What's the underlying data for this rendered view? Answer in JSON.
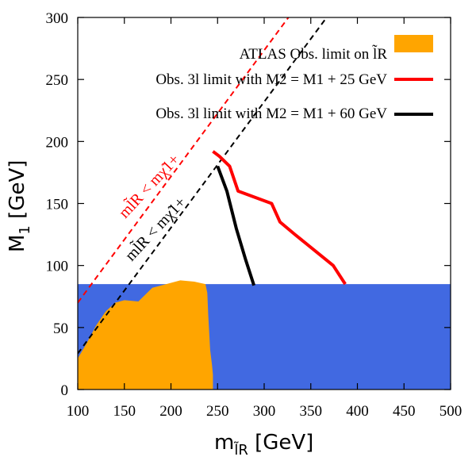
{
  "chart_data": {
    "type": "line",
    "xlabel": "m",
    "xlabel_sub": "l̃R",
    "xlabel_unit": " [GeV]",
    "ylabel": "M",
    "ylabel_sub": "1",
    "ylabel_unit": " [GeV]",
    "xlim": [
      100,
      500
    ],
    "ylim": [
      0,
      300
    ],
    "xticks": [
      100,
      150,
      200,
      250,
      300,
      350,
      400,
      450,
      500
    ],
    "yticks": [
      0,
      50,
      100,
      150,
      200,
      250,
      300
    ],
    "colors": {
      "band": "#4169e1",
      "atlas": "#ffa500",
      "limit25": "#ff0000",
      "limit60": "#000000",
      "diag_red": "#ff0000",
      "diag_black": "#000000"
    },
    "excluded_band": {
      "y_max": 85
    },
    "atlas_region": [
      [
        100,
        0
      ],
      [
        100,
        25
      ],
      [
        110,
        38
      ],
      [
        120,
        52
      ],
      [
        130,
        63
      ],
      [
        140,
        70
      ],
      [
        150,
        72
      ],
      [
        165,
        71
      ],
      [
        180,
        82
      ],
      [
        195,
        85
      ],
      [
        210,
        88
      ],
      [
        225,
        87
      ],
      [
        237,
        85
      ],
      [
        239,
        78
      ],
      [
        240,
        60
      ],
      [
        242,
        32
      ],
      [
        244,
        20
      ],
      [
        245,
        12
      ],
      [
        245,
        0
      ]
    ],
    "series": [
      {
        "name": "Obs. 3l limit with M2 = M1 + 25 GeV",
        "color": "#ff0000",
        "points": [
          [
            245,
            192
          ],
          [
            252,
            188
          ],
          [
            263,
            180
          ],
          [
            272,
            160
          ],
          [
            308,
            150
          ],
          [
            317,
            135
          ],
          [
            333,
            125
          ],
          [
            374,
            100
          ],
          [
            387,
            85
          ]
        ]
      },
      {
        "name": "Obs. 3l limit with M2 = M1 + 60 GeV",
        "color": "#000000",
        "points": [
          [
            250,
            180
          ],
          [
            260,
            160
          ],
          [
            270,
            130
          ],
          [
            280,
            105
          ],
          [
            289,
            84
          ]
        ]
      }
    ],
    "diagonals": [
      {
        "color": "#ff0000",
        "points": [
          [
            100,
            70
          ],
          [
            326,
            300
          ]
        ]
      },
      {
        "color": "#000000",
        "points": [
          [
            100,
            29
          ],
          [
            367,
            300
          ]
        ]
      }
    ],
    "legend": {
      "atlas_label": "ATLAS Obs. limit on l̃R",
      "red_label": "Obs. 3l limit with M2 = M1 + 25 GeV",
      "black_label": "Obs. 3l limit with M2 = M1 + 60 GeV",
      "position": "top-right"
    },
    "annotations": {
      "red_diag_label": "ml̃R < mχ̃1+",
      "black_diag_label": "ml̃R < mχ̃1+"
    }
  }
}
